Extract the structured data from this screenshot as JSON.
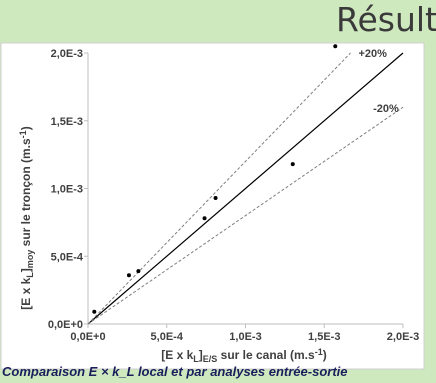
{
  "slide": {
    "heading": "Résult",
    "caption": "Comparaison E × k_L local et par analyses entrée-sortie"
  },
  "chart_data": {
    "type": "scatter",
    "title": "",
    "xlabel": "[E x kL]E/S sur le canal (m.s-1)",
    "ylabel": "[E x kL]moy sur le tronçon (m.s-1)",
    "xlim": [
      0,
      0.002
    ],
    "ylim": [
      0,
      0.002
    ],
    "x_ticks": [
      "0,0E+0",
      "5,0E-4",
      "1,0E-3",
      "1,5E-3",
      "2,0E-3"
    ],
    "y_ticks": [
      "0,0E+0",
      "5,0E-4",
      "1,0E-3",
      "1,5E-3",
      "2,0E-3"
    ],
    "grid": false,
    "series": [
      {
        "points": [
          {
            "x": 4e-05,
            "y": 9e-05
          },
          {
            "x": 0.00026,
            "y": 0.00036
          },
          {
            "x": 0.00032,
            "y": 0.00039
          },
          {
            "x": 0.00074,
            "y": 0.00078
          },
          {
            "x": 0.00081,
            "y": 0.00093
          },
          {
            "x": 0.0013,
            "y": 0.00118
          },
          {
            "x": 0.00157,
            "y": 0.00205
          }
        ]
      }
    ],
    "reference_lines": [
      {
        "label": "",
        "slope": 1.0,
        "style": "solid"
      },
      {
        "label": "+20%",
        "slope": 1.2,
        "style": "dashed"
      },
      {
        "label": "-20%",
        "slope": 0.8,
        "style": "dashed"
      }
    ],
    "colors": {
      "points": "#000000",
      "lines": "#000000",
      "dashed": "#7f7f7f",
      "plot_bg": "#ffffff"
    }
  }
}
